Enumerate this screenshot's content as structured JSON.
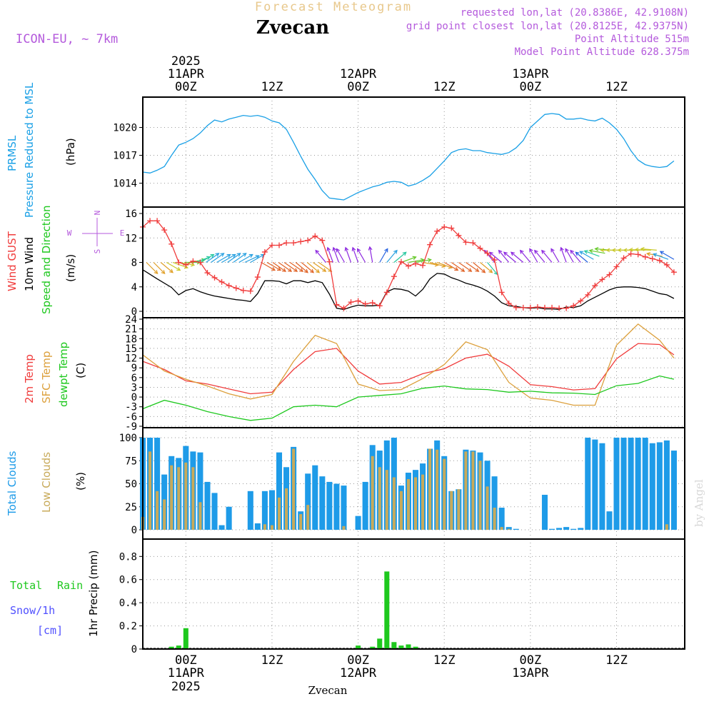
{
  "header": {
    "forecast_title": "Forecast Meteogram",
    "location": "Zvecan",
    "model": "ICON-EU, ~ 7km",
    "requested": "requested lon,lat (20.8386E, 42.9108N)",
    "gridpoint": "grid point closest lon,lat (20.8125E, 42.9375N)",
    "point_alt": "Point Altitude 515m",
    "model_alt": "Model Point Altitude 628.375m"
  },
  "top_axis": {
    "year": "2025",
    "labels": [
      {
        "hour": 6,
        "date": "11APR",
        "time": "00Z"
      },
      {
        "hour": 18,
        "time": "12Z"
      },
      {
        "hour": 30,
        "date": "12APR",
        "time": "00Z"
      },
      {
        "hour": 42,
        "time": "12Z"
      },
      {
        "hour": 54,
        "date": "13APR",
        "time": "00Z"
      },
      {
        "hour": 66,
        "time": "12Z"
      }
    ]
  },
  "bottom_axis": {
    "year": "2025",
    "labels": [
      {
        "hour": 6,
        "time": "00Z",
        "date": "11APR"
      },
      {
        "hour": 18,
        "time": "12Z"
      },
      {
        "hour": 30,
        "time": "00Z",
        "date": "12APR"
      },
      {
        "hour": 42,
        "time": "12Z"
      },
      {
        "hour": 54,
        "time": "00Z",
        "date": "13APR"
      },
      {
        "hour": 66,
        "time": "12Z"
      }
    ],
    "location": "Zvecan"
  },
  "watermark": "by Angel",
  "colors": {
    "pressure": "#1aa0e6",
    "gust": "#f03c3c",
    "wind": "#000000",
    "temp2m": "#f03c3c",
    "sfc": "#dca03c",
    "dewpt": "#1ec81e",
    "total_clouds": "#1e9be8",
    "low_clouds": "#c8aa5a",
    "rain": "#1ec81e",
    "snow": "#5050ff",
    "purple": "#b45adc",
    "title_faded": "#e8c88c"
  },
  "panels": {
    "pressure": {
      "label1": "PRMSL",
      "label2": "Pressure Reduced to MSL",
      "unit": "(hPa)"
    },
    "wind": {
      "label_gust": "Wind GUST",
      "label_10m": "10m Wind",
      "label_dir": "Speed and Direction",
      "unit": "(m/s)",
      "compass_n": "N",
      "compass_s": "S",
      "compass_w": "W",
      "compass_e": "E"
    },
    "temp": {
      "label_2m": "2m Temp",
      "label_sfc": "SFC Temp",
      "label_dew": "dewpt Temp",
      "unit": "(C)"
    },
    "clouds": {
      "label_total": "Total Clouds",
      "label_low": "Low Clouds",
      "unit": "(%)"
    },
    "precip": {
      "label_total": "Total",
      "label_rain": "Rain",
      "label_snow": "Snow/1h",
      "label_cm": "[cm]",
      "unit": "1hr Precip (mm)"
    }
  },
  "chart_data": [
    {
      "type": "line",
      "title": "PRMSL",
      "ylabel": "(hPa)",
      "x_hours": "hours after 10APR 18Z",
      "yticks": [
        1014,
        1017,
        1020
      ],
      "ylim": [
        1012.2,
        1022.5
      ],
      "series": [
        {
          "name": "PRMSL",
          "x": [
            0,
            1,
            2,
            3,
            4,
            5,
            6,
            7,
            8,
            9,
            10,
            11,
            12,
            13,
            14,
            15,
            16,
            17,
            18,
            19,
            20,
            21,
            22,
            23,
            24,
            25,
            26,
            27,
            28,
            29,
            30,
            31,
            32,
            33,
            34,
            35,
            36,
            37,
            38,
            39,
            40,
            41,
            42,
            43,
            44,
            45,
            46,
            47,
            48,
            49,
            50,
            51,
            52,
            53,
            54,
            55,
            56,
            57,
            58,
            59,
            60,
            61,
            62,
            63,
            64,
            65,
            66,
            67,
            68,
            69,
            70,
            71,
            72,
            73,
            74
          ],
          "y": [
            1015.2,
            1015.1,
            1015.4,
            1015.8,
            1017.0,
            1018.1,
            1018.4,
            1018.8,
            1019.4,
            1020.2,
            1020.8,
            1020.6,
            1020.9,
            1021.1,
            1021.3,
            1021.2,
            1021.3,
            1021.1,
            1020.7,
            1020.5,
            1019.8,
            1018.4,
            1016.9,
            1015.5,
            1014.4,
            1013.2,
            1012.4,
            1012.3,
            1012.2,
            1012.6,
            1013.0,
            1013.3,
            1013.6,
            1013.8,
            1014.1,
            1014.2,
            1014.1,
            1013.7,
            1013.9,
            1014.3,
            1014.8,
            1015.6,
            1016.4,
            1017.3,
            1017.6,
            1017.7,
            1017.5,
            1017.5,
            1017.3,
            1017.2,
            1017.1,
            1017.3,
            1017.8,
            1018.6,
            1020.0,
            1020.7,
            1021.4,
            1021.5,
            1021.4,
            1020.9,
            1020.9,
            1021.0,
            1020.8,
            1020.7,
            1021.0,
            1020.5,
            1019.8,
            1018.8,
            1017.5,
            1016.5,
            1016.0,
            1015.8,
            1015.7,
            1015.8,
            1016.4
          ]
        }
      ]
    },
    {
      "type": "line",
      "title": "Wind GUST / 10m Wind Speed and Direction",
      "ylabel": "(m/s)",
      "yticks": [
        0,
        4,
        8,
        12,
        16
      ],
      "ylim": [
        0,
        16
      ],
      "series": [
        {
          "name": "Wind GUST",
          "x": [
            0,
            1,
            2,
            3,
            4,
            5,
            6,
            7,
            8,
            9,
            10,
            11,
            12,
            13,
            14,
            15,
            16,
            17,
            18,
            19,
            20,
            21,
            22,
            23,
            24,
            25,
            26,
            27,
            28,
            29,
            30,
            31,
            32,
            33,
            34,
            35,
            36,
            37,
            38,
            39,
            40,
            41,
            42,
            43,
            44,
            45,
            46,
            47,
            48,
            49,
            50,
            51,
            52,
            53,
            54,
            55,
            56,
            57,
            58,
            59,
            60,
            61,
            62,
            63,
            64,
            65,
            66,
            67,
            68,
            69,
            70,
            71,
            72,
            73,
            74
          ],
          "y": [
            13.8,
            14.8,
            14.8,
            13.3,
            11.0,
            8.0,
            7.6,
            8.2,
            8.0,
            6.3,
            5.5,
            4.8,
            4.2,
            3.8,
            3.4,
            3.3,
            5.6,
            9.7,
            10.8,
            10.8,
            11.2,
            11.2,
            11.4,
            11.6,
            12.3,
            11.6,
            8.1,
            1.1,
            0.5,
            1.5,
            1.7,
            1.2,
            1.4,
            0.9,
            3.1,
            5.7,
            8.1,
            7.4,
            7.8,
            7.5,
            10.9,
            13.1,
            13.8,
            13.6,
            12.4,
            11.3,
            11.2,
            10.3,
            9.5,
            8.4,
            3.1,
            1.3,
            0.6,
            0.6,
            0.6,
            0.7,
            0.6,
            0.6,
            0.5,
            0.5,
            0.9,
            1.7,
            2.7,
            4.2,
            5.2,
            6.0,
            7.3,
            8.7,
            9.4,
            9.3,
            8.9,
            8.6,
            8.3,
            7.6,
            6.4
          ]
        },
        {
          "name": "10m Wind",
          "x": [
            0,
            2,
            4,
            5,
            6,
            7,
            8,
            9,
            10,
            11,
            12,
            13,
            14,
            15,
            16,
            17,
            18,
            19,
            20,
            21,
            22,
            23,
            24,
            25,
            26,
            27,
            28,
            29,
            30,
            31,
            32,
            33,
            34,
            35,
            36,
            37,
            38,
            39,
            40,
            41,
            42,
            43,
            44,
            45,
            46,
            47,
            48,
            49,
            50,
            51,
            52,
            53,
            54,
            55,
            56,
            57,
            58,
            59,
            60,
            61,
            62,
            63,
            64,
            65,
            66,
            67,
            68,
            69,
            70,
            71,
            72,
            73,
            74
          ],
          "y": [
            6.8,
            5.3,
            3.9,
            2.7,
            3.4,
            3.7,
            3.2,
            2.8,
            2.5,
            2.3,
            2.1,
            1.9,
            1.8,
            1.6,
            2.9,
            5.0,
            5.0,
            4.9,
            4.5,
            5.0,
            5.0,
            4.7,
            5.0,
            4.7,
            2.8,
            0.5,
            0.3,
            0.7,
            1.0,
            0.9,
            0.9,
            1.0,
            3.2,
            3.7,
            3.6,
            3.3,
            2.5,
            3.6,
            5.3,
            6.2,
            6.1,
            5.5,
            5.1,
            4.6,
            4.3,
            3.9,
            3.3,
            2.5,
            1.4,
            0.9,
            0.8,
            0.6,
            0.5,
            0.6,
            0.4,
            0.4,
            0.3,
            0.7,
            0.6,
            0.9,
            1.7,
            2.3,
            2.9,
            3.5,
            3.9,
            4.0,
            4.0,
            3.9,
            3.7,
            3.3,
            2.9,
            2.7,
            2.1
          ]
        }
      ]
    },
    {
      "type": "line",
      "title": "2m Temp / SFC Temp / dewpt Temp",
      "ylabel": "(C)",
      "yticks": [
        -9,
        -6,
        -3,
        0,
        3,
        6,
        9,
        12,
        15,
        18,
        21,
        24
      ],
      "ylim": [
        -9,
        24
      ],
      "series": [
        {
          "name": "2m Temp",
          "x": [
            0,
            3,
            6,
            9,
            12,
            15,
            18,
            21,
            24,
            27,
            30,
            33,
            36,
            39,
            42,
            45,
            48,
            51,
            54,
            57,
            60,
            63,
            66,
            69,
            72,
            74
          ],
          "y": [
            11,
            8.5,
            5,
            4,
            2.5,
            1,
            1.5,
            8.5,
            14,
            15,
            8,
            4,
            4.5,
            7.2,
            8.7,
            12,
            13.2,
            9.5,
            3.8,
            3.2,
            2.2,
            2.6,
            11.8,
            16.5,
            16.2,
            13
          ]
        },
        {
          "name": "SFC Temp",
          "x": [
            0,
            3,
            6,
            9,
            12,
            15,
            18,
            21,
            24,
            27,
            30,
            33,
            36,
            39,
            42,
            45,
            48,
            51,
            54,
            57,
            60,
            63,
            66,
            69,
            72,
            74
          ],
          "y": [
            13,
            8,
            5.5,
            3.4,
            1,
            -0.6,
            0.8,
            11,
            19,
            16.5,
            4,
            2,
            2.3,
            5.7,
            10,
            17,
            14.6,
            4.5,
            -0.3,
            -1,
            -2.5,
            -2.5,
            16,
            22.5,
            17.5,
            12
          ]
        },
        {
          "name": "dewpt Temp",
          "x": [
            0,
            3,
            6,
            9,
            12,
            15,
            18,
            21,
            24,
            27,
            30,
            33,
            36,
            39,
            42,
            45,
            48,
            51,
            54,
            57,
            60,
            63,
            66,
            69,
            72,
            74
          ],
          "y": [
            -3.6,
            -1,
            -2.5,
            -4.5,
            -6,
            -7.2,
            -6.5,
            -3,
            -2.5,
            -3,
            0,
            0.5,
            1,
            2.7,
            3.4,
            2.5,
            2.3,
            1.5,
            1.8,
            1.3,
            1.2,
            0.8,
            3.5,
            4.2,
            6.5,
            5.5
          ]
        }
      ]
    },
    {
      "type": "bar",
      "title": "Total Clouds / Low Clouds",
      "ylabel": "(%)",
      "yticks": [
        0,
        25,
        50,
        75,
        100
      ],
      "ylim": [
        0,
        100
      ],
      "x_hours": [
        0,
        1,
        2,
        3,
        4,
        5,
        6,
        7,
        8,
        9,
        10,
        11,
        12,
        13,
        14,
        15,
        16,
        17,
        18,
        19,
        20,
        21,
        22,
        23,
        24,
        25,
        26,
        27,
        28,
        29,
        30,
        31,
        32,
        33,
        34,
        35,
        36,
        37,
        38,
        39,
        40,
        41,
        42,
        43,
        44,
        45,
        46,
        47,
        48,
        49,
        50,
        51,
        52,
        53,
        54,
        55,
        56,
        57,
        58,
        59,
        60,
        61,
        62,
        63,
        64,
        65,
        66,
        67,
        68,
        69,
        70,
        71,
        72,
        73,
        74
      ],
      "series": [
        {
          "name": "Total Clouds",
          "values": [
            100,
            100,
            100,
            60,
            80,
            78,
            91,
            85,
            84,
            52,
            40,
            5,
            25,
            0,
            0,
            42,
            7,
            42,
            43,
            84,
            68,
            90,
            20,
            61,
            70,
            58,
            52,
            50,
            48,
            0,
            15,
            52,
            92,
            86,
            97,
            100,
            48,
            62,
            65,
            72,
            88,
            97,
            80,
            42,
            44,
            87,
            86,
            84,
            75,
            58,
            24,
            3,
            1,
            0,
            0,
            0,
            38,
            1,
            2,
            3,
            1,
            2,
            100,
            98,
            94,
            20,
            100,
            100,
            100,
            100,
            100,
            94,
            95,
            97,
            86
          ]
        },
        {
          "name": "Low Clouds",
          "values": [
            14,
            85,
            42,
            33,
            70,
            68,
            73,
            68,
            30,
            0,
            0,
            0,
            0,
            0,
            0,
            0,
            0,
            6,
            5,
            35,
            45,
            88,
            17,
            27,
            0,
            0,
            0,
            0,
            4,
            0,
            0,
            0,
            80,
            68,
            65,
            57,
            42,
            55,
            57,
            60,
            88,
            87,
            77,
            42,
            44,
            85,
            85,
            75,
            47,
            24,
            3,
            1,
            0,
            0,
            0,
            0,
            0,
            0,
            0,
            0,
            0,
            0,
            0,
            0,
            0,
            0,
            0,
            0,
            0,
            0,
            0,
            0,
            0,
            6,
            0
          ]
        }
      ]
    },
    {
      "type": "bar",
      "title": "Total Rain / Snow",
      "ylabel": "1hr Precip (mm)",
      "yticks": [
        0,
        0.2,
        0.4,
        0.6,
        0.8
      ],
      "ylim": [
        0,
        0.95
      ],
      "x_hours": [
        4,
        5,
        6,
        30,
        32,
        33,
        34,
        35,
        36,
        37,
        38
      ],
      "series": [
        {
          "name": "Total Rain",
          "values": [
            0.02,
            0.03,
            0.18,
            0.03,
            0.02,
            0.09,
            0.67,
            0.06,
            0.03,
            0.04,
            0.02
          ]
        }
      ]
    }
  ]
}
